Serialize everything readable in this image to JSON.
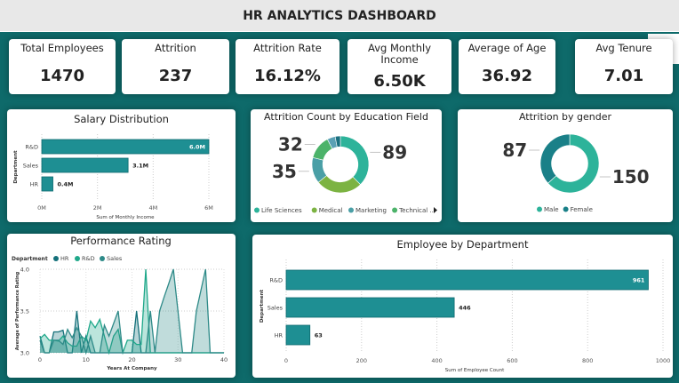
{
  "header": {
    "title": "HR ANALYTICS DASHBOARD"
  },
  "kpis": [
    {
      "label": "Total Employees",
      "value": "1470"
    },
    {
      "label": "Attrition",
      "value": "237"
    },
    {
      "label": "Attrition Rate",
      "value": "16.12%"
    },
    {
      "label": "Avg Monthly Income",
      "value": "6.50K"
    },
    {
      "label": "Average of Age",
      "value": "36.92"
    },
    {
      "label": "Avg Tenure",
      "value": "7.01"
    }
  ],
  "colors": {
    "bg": "#0e6a6a",
    "bar": "#1e8f93",
    "teal": "#2db39a",
    "darkteal": "#1a8088",
    "green": "#7cb342",
    "blue": "#3e9aa6"
  },
  "chart_data": [
    {
      "type": "bar",
      "title": "Salary Distribution",
      "categories": [
        "R&D",
        "Sales",
        "HR"
      ],
      "values": [
        6.0,
        3.1,
        0.4
      ],
      "data_labels": [
        "6.0M",
        "3.1M",
        "0.4M"
      ],
      "xlabel": "Sum of Monthly Income",
      "ylabel": "Department",
      "xlim": [
        0,
        6
      ],
      "ticks": [
        "0M",
        "2M",
        "4M",
        "6M"
      ]
    },
    {
      "type": "pie",
      "title": "Attrition Count by Education Field",
      "slices": [
        {
          "name": "Life Sciences",
          "value": 89,
          "label": "89",
          "color": "#2db39a"
        },
        {
          "name": "Medical",
          "value": 63,
          "label": "",
          "color": "#7cb342"
        },
        {
          "name": "Marketing",
          "value": 35,
          "label": "35",
          "color": "#4a9fa6"
        },
        {
          "name": "Technical ...",
          "value": 32,
          "label": "32",
          "color": "#4cb36a"
        },
        {
          "name": "",
          "value": 11,
          "label": "",
          "color": "#5aa0b4"
        },
        {
          "name": "",
          "value": 7,
          "label": "",
          "color": "#1a7080"
        }
      ],
      "legend": [
        "Life Sciences",
        "Medical",
        "Marketing",
        "Technical ..."
      ]
    },
    {
      "type": "pie",
      "title": "Attrition by gender",
      "slices": [
        {
          "name": "Male",
          "value": 150,
          "label": "150",
          "color": "#2db39a"
        },
        {
          "name": "Female",
          "value": 87,
          "label": "87",
          "color": "#1a8088"
        }
      ],
      "legend": [
        "Male",
        "Female"
      ]
    },
    {
      "type": "area",
      "title": "Performance Rating",
      "legend_title": "Department",
      "xlabel": "Years At Company",
      "ylabel": "Average of Performance Rating",
      "xlim": [
        0,
        40
      ],
      "ylim": [
        3.0,
        4.0
      ],
      "xticks": [
        "0",
        "10",
        "20",
        "30",
        "40"
      ],
      "yticks": [
        "3.0",
        "3.5",
        "4.0"
      ],
      "series": [
        {
          "name": "HR",
          "color": "#14707a",
          "x": [
            0,
            1,
            2,
            3,
            4,
            5,
            6,
            7,
            8,
            9,
            10,
            11,
            12,
            13,
            14,
            15,
            16,
            17,
            18,
            19,
            20,
            21,
            22,
            23,
            24,
            25,
            26,
            27,
            28,
            29,
            30,
            31,
            32,
            33,
            34,
            35,
            36,
            37,
            38,
            39,
            40
          ],
          "y": [
            3.2,
            3.0,
            3.0,
            3.25,
            3.25,
            3.27,
            3.0,
            3.0,
            3.5,
            3.0,
            3.2,
            3.0,
            3.0,
            3.0,
            3.0,
            3.0,
            3.0,
            3.0,
            3.0,
            3.0,
            3.0,
            3.5,
            3.0,
            3.0,
            3.0,
            3.0,
            3.0,
            3.0,
            3.0,
            3.0,
            3.0,
            3.0,
            3.0,
            3.0,
            3.0,
            3.0,
            3.0,
            3.0,
            3.0,
            3.0,
            3.0
          ]
        },
        {
          "name": "R&D",
          "color": "#1fa88a",
          "x": [
            0,
            1,
            2,
            3,
            4,
            5,
            6,
            7,
            8,
            9,
            10,
            11,
            12,
            13,
            14,
            15,
            16,
            17,
            18,
            19,
            20,
            21,
            22,
            23,
            24,
            25,
            26,
            27,
            28,
            29,
            30,
            31,
            32,
            33,
            34,
            35,
            36,
            37,
            38,
            39,
            40
          ],
          "y": [
            3.17,
            3.22,
            3.15,
            3.15,
            3.14,
            3.2,
            3.12,
            3.08,
            3.08,
            3.2,
            3.15,
            3.38,
            3.3,
            3.4,
            3.2,
            3.0,
            3.2,
            3.28,
            3.0,
            3.15,
            3.15,
            3.1,
            3.1,
            4.0,
            3.0,
            3.0,
            3.0,
            3.0,
            3.0,
            3.0,
            3.0,
            3.0,
            3.0,
            3.0,
            3.0,
            3.0,
            3.0,
            3.0,
            3.0,
            3.0,
            3.0
          ]
        },
        {
          "name": "Sales",
          "color": "#2e8a88",
          "x": [
            0,
            1,
            2,
            3,
            4,
            5,
            6,
            7,
            8,
            9,
            10,
            11,
            12,
            13,
            14,
            15,
            16,
            17,
            18,
            19,
            20,
            21,
            22,
            23,
            24,
            25,
            26,
            27,
            28,
            29,
            30,
            31,
            32,
            33,
            34,
            35,
            36,
            37,
            38,
            39,
            40
          ],
          "y": [
            3.15,
            3.0,
            3.0,
            3.15,
            3.15,
            3.1,
            3.28,
            3.18,
            3.3,
            3.2,
            3.0,
            3.2,
            3.0,
            3.0,
            3.33,
            3.2,
            3.35,
            3.5,
            3.0,
            3.0,
            3.0,
            3.0,
            3.0,
            3.0,
            3.5,
            3.0,
            3.5,
            3.67,
            3.83,
            4.0,
            3.5,
            3.0,
            3.0,
            3.0,
            3.5,
            3.75,
            4.0,
            3.0,
            3.0,
            3.0,
            3.0
          ]
        }
      ]
    },
    {
      "type": "bar",
      "title": "Employee by Department",
      "categories": [
        "R&D",
        "Sales",
        "HR"
      ],
      "values": [
        961,
        446,
        63
      ],
      "data_labels": [
        "961",
        "446",
        "63"
      ],
      "xlabel": "Sum of Employee Count",
      "ylabel": "Department",
      "xlim": [
        0,
        1000
      ],
      "ticks": [
        "0",
        "200",
        "400",
        "600",
        "800",
        "1000"
      ]
    }
  ]
}
